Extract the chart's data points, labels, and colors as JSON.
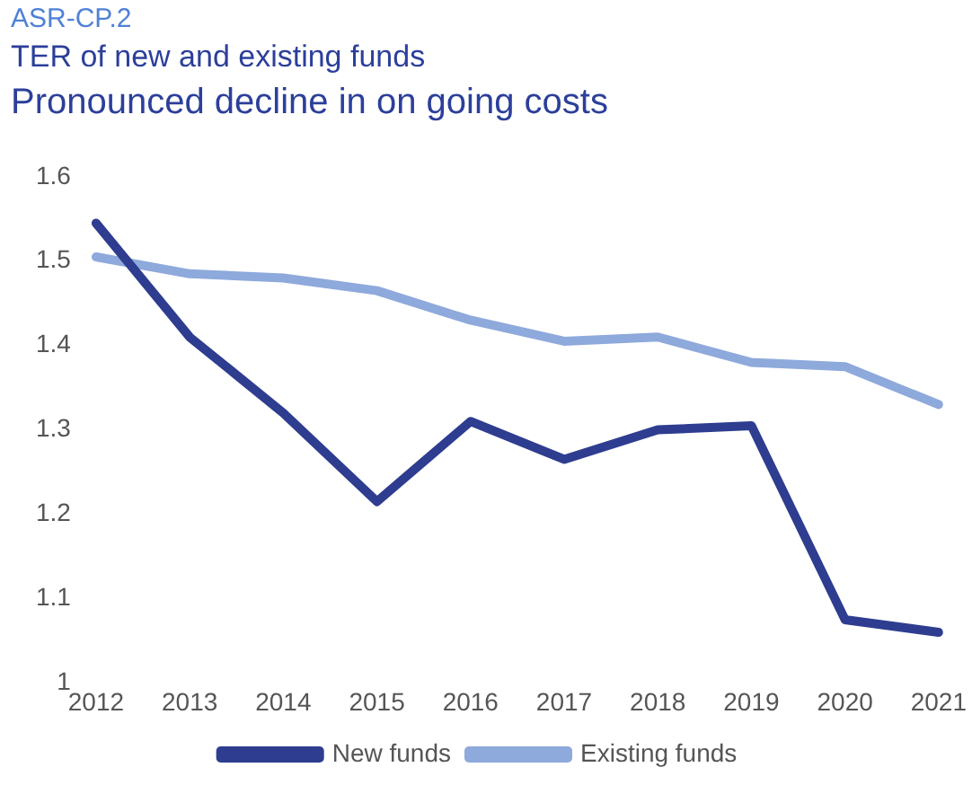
{
  "chart_data": {
    "type": "line",
    "title": "ASR-CP.2",
    "subtitle": "TER of new and existing funds",
    "annotations": [
      "Pronounced decline in on going costs"
    ],
    "categories": [
      "2012",
      "2013",
      "2014",
      "2015",
      "2016",
      "2017",
      "2018",
      "2019",
      "2020",
      "2021"
    ],
    "series": [
      {
        "name": "New funds",
        "color": "#2e3d8f",
        "values": [
          1.545,
          1.41,
          1.32,
          1.215,
          1.31,
          1.265,
          1.3,
          1.305,
          1.075,
          1.06
        ]
      },
      {
        "name": "Existing funds",
        "color": "#8ea9db",
        "values": [
          1.505,
          1.485,
          1.48,
          1.465,
          1.43,
          1.405,
          1.41,
          1.38,
          1.375,
          1.33
        ]
      }
    ],
    "ylim": [
      1,
      1.6
    ],
    "yticks": [
      1,
      1.1,
      1.2,
      1.3,
      1.4,
      1.5,
      1.6
    ],
    "grid": false,
    "legend": "bottom",
    "marker": "none",
    "line_style": "solid"
  }
}
